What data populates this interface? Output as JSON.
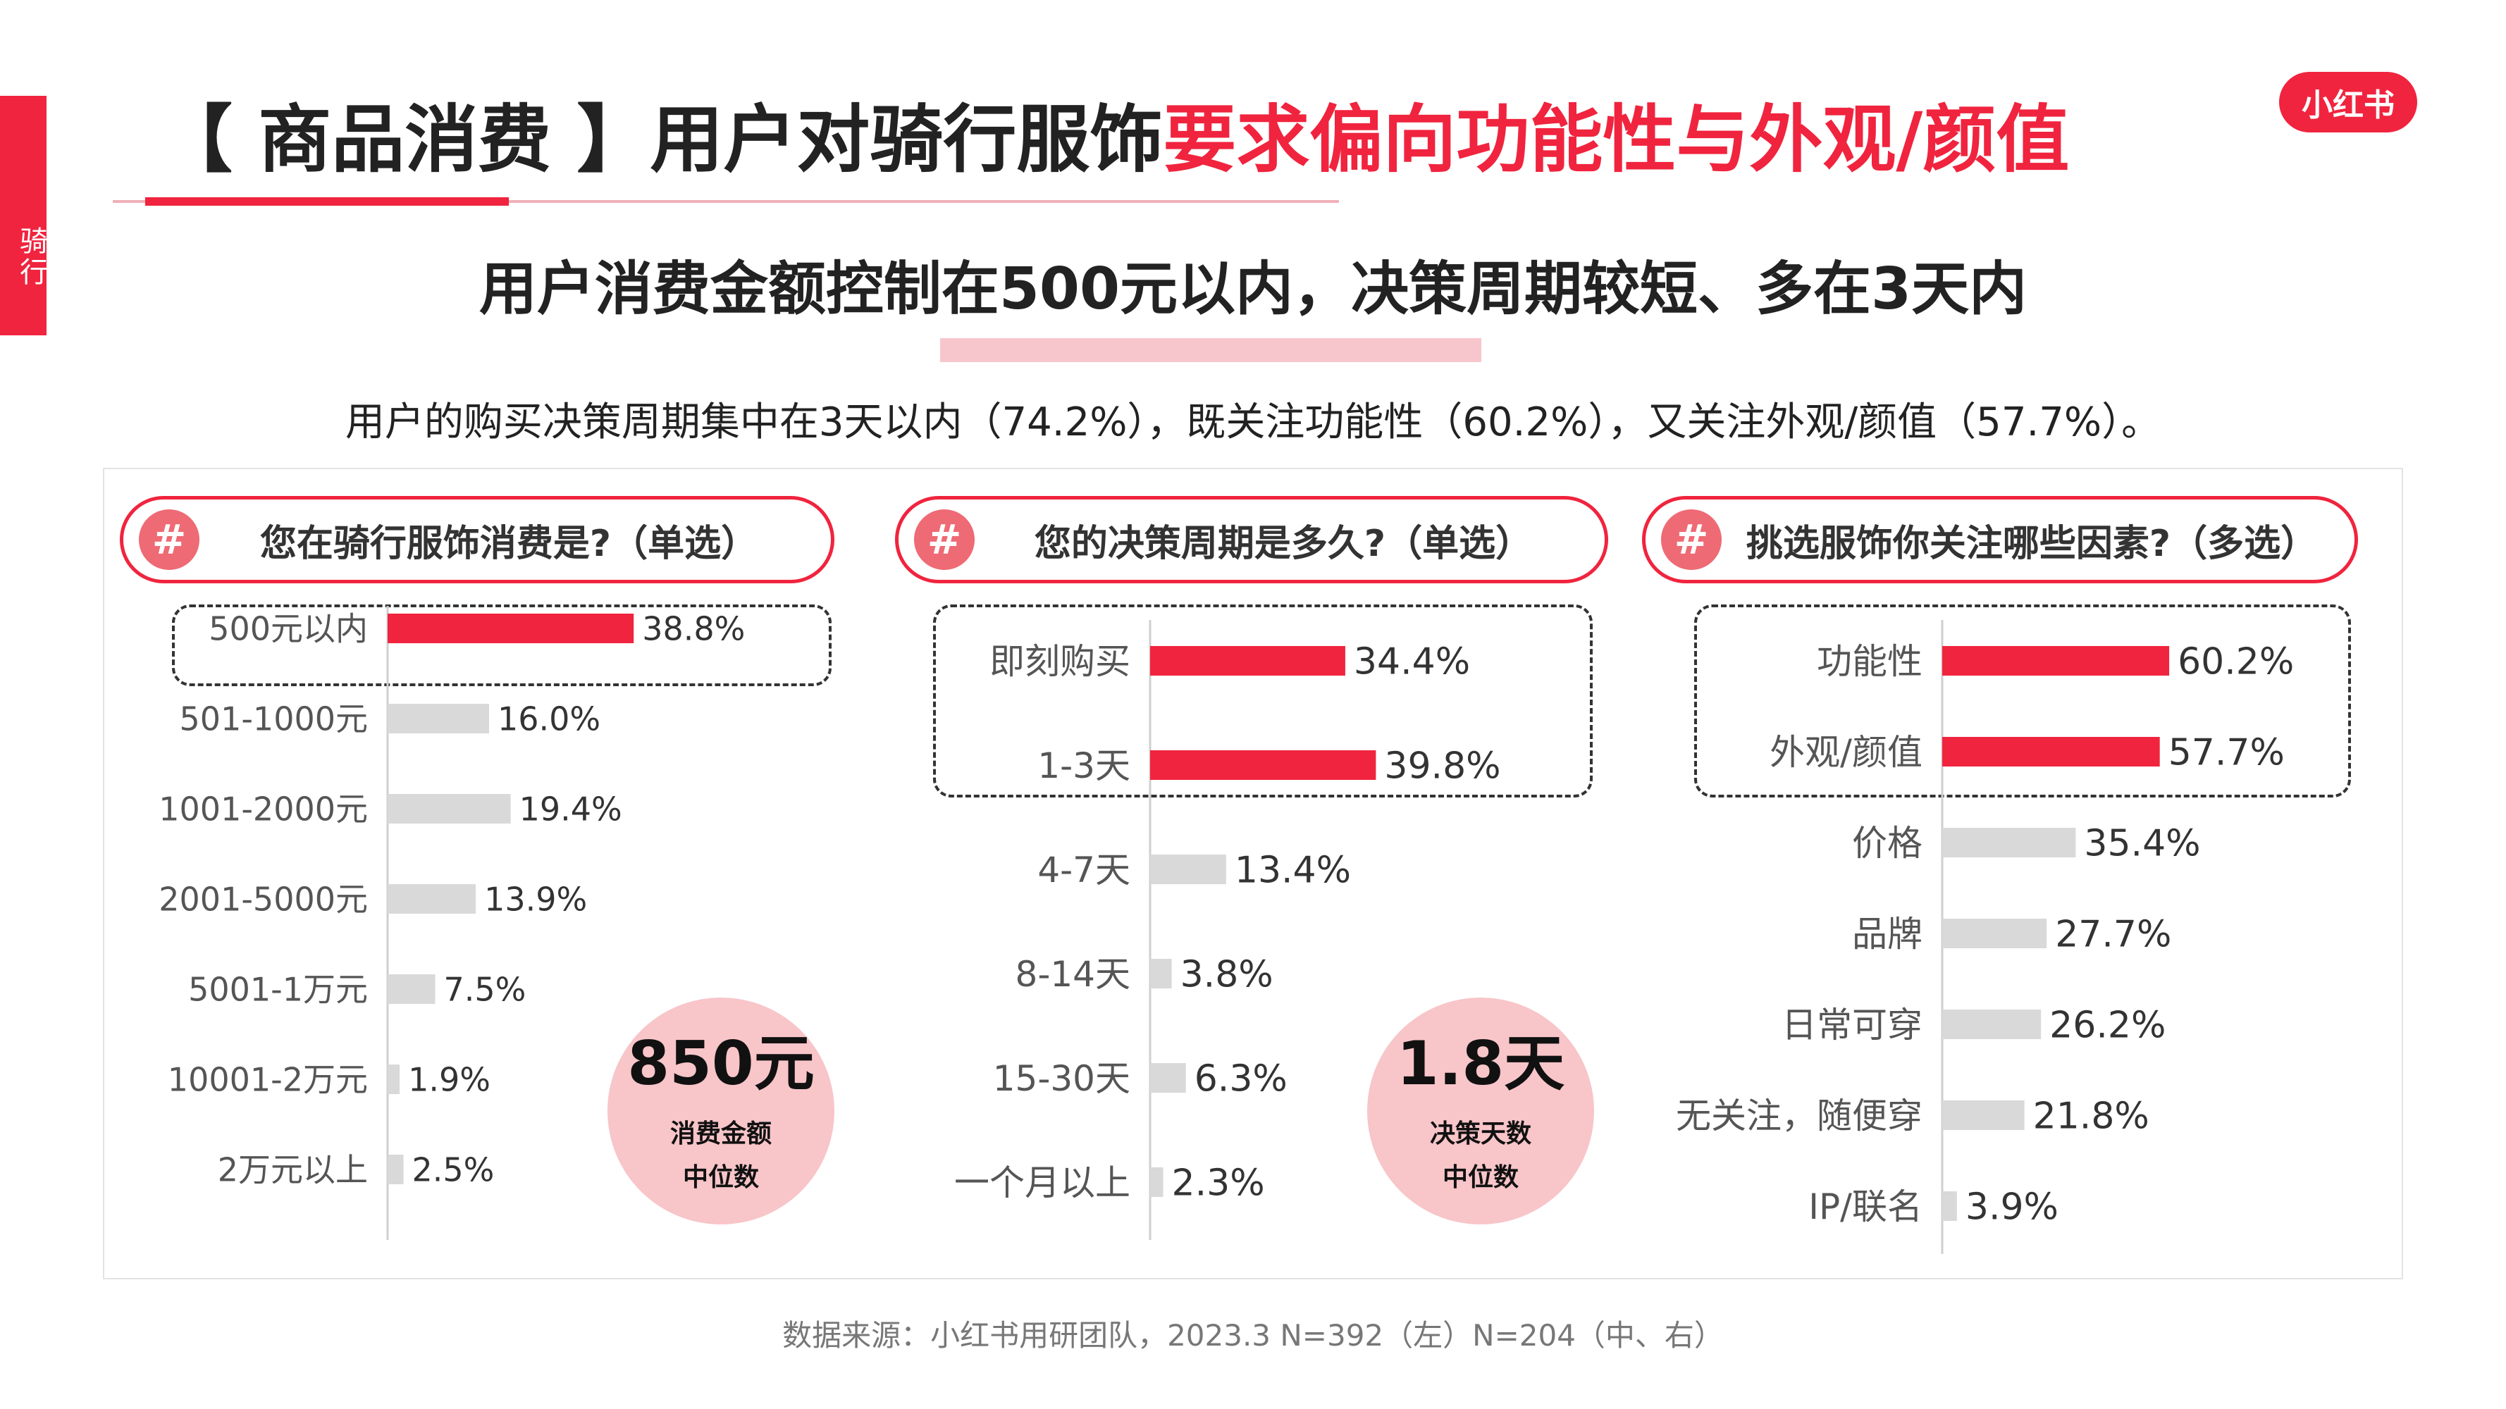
{
  "side_tab": "骑行",
  "logo": "小红书",
  "title": {
    "main": "【 商品消费 】用户对骑行服饰",
    "highlight": "要求偏向功能性与外观/颜值"
  },
  "subtitle": "用户消费金额控制在500元以内，决策周期较短、多在3天内",
  "description": "用户的购买决策周期集中在3天以内（74.2%），既关注功能性（60.2%），又关注外观/颜值（57.7%）。",
  "colors": {
    "highlight": "#f0243e",
    "normal": "#d9d9d9",
    "median_bg": "#f8c5c9",
    "hash_bg": "#ee6a74"
  },
  "questions": [
    {
      "hash": "#",
      "text": "您在骑行服饰消费是?（单选）"
    },
    {
      "hash": "#",
      "text": "您的决策周期是多久?（单选）"
    },
    {
      "hash": "#",
      "text": "挑选服饰你关注哪些因素?（多选）"
    }
  ],
  "medians": [
    {
      "value": "850元",
      "line1": "消费金额",
      "line2": "中位数"
    },
    {
      "value": "1.8天",
      "line1": "决策天数",
      "line2": "中位数"
    }
  ],
  "chart_data": [
    {
      "type": "bar",
      "orientation": "horizontal",
      "title": "您在骑行服饰消费是?（单选）",
      "categories": [
        "500元以内",
        "501-1000元",
        "1001-2000元",
        "2001-5000元",
        "5001-1万元",
        "10001-2万元",
        "2万元以上"
      ],
      "values": [
        38.8,
        16.0,
        19.4,
        13.9,
        7.5,
        1.9,
        2.5
      ],
      "labels": [
        "38.8%",
        "16.0%",
        "19.4%",
        "13.9%",
        "7.5%",
        "1.9%",
        "2.5%"
      ],
      "highlight": [
        true,
        false,
        false,
        false,
        false,
        false,
        false
      ],
      "unit": "%"
    },
    {
      "type": "bar",
      "orientation": "horizontal",
      "title": "您的决策周期是多久?（单选）",
      "categories": [
        "即刻购买",
        "1-3天",
        "4-7天",
        "8-14天",
        "15-30天",
        "一个月以上"
      ],
      "values": [
        34.4,
        39.8,
        13.4,
        3.8,
        6.3,
        2.3
      ],
      "labels": [
        "34.4%",
        "39.8%",
        "13.4%",
        "3.8%",
        "6.3%",
        "2.3%"
      ],
      "highlight": [
        true,
        true,
        false,
        false,
        false,
        false
      ],
      "unit": "%"
    },
    {
      "type": "bar",
      "orientation": "horizontal",
      "title": "挑选服饰你关注哪些因素?（多选）",
      "categories": [
        "功能性",
        "外观/颜值",
        "价格",
        "品牌",
        "日常可穿",
        "无关注，随便穿",
        "IP/联名"
      ],
      "values": [
        60.2,
        57.7,
        35.4,
        27.7,
        26.2,
        21.8,
        3.9
      ],
      "labels": [
        "60.2%",
        "57.7%",
        "35.4%",
        "27.7%",
        "26.2%",
        "21.8%",
        "3.9%"
      ],
      "highlight": [
        true,
        true,
        false,
        false,
        false,
        false,
        false
      ],
      "unit": "%"
    }
  ],
  "source": "数据来源：小红书用研团队，2023.3 N=392（左）N=204（中、右）"
}
